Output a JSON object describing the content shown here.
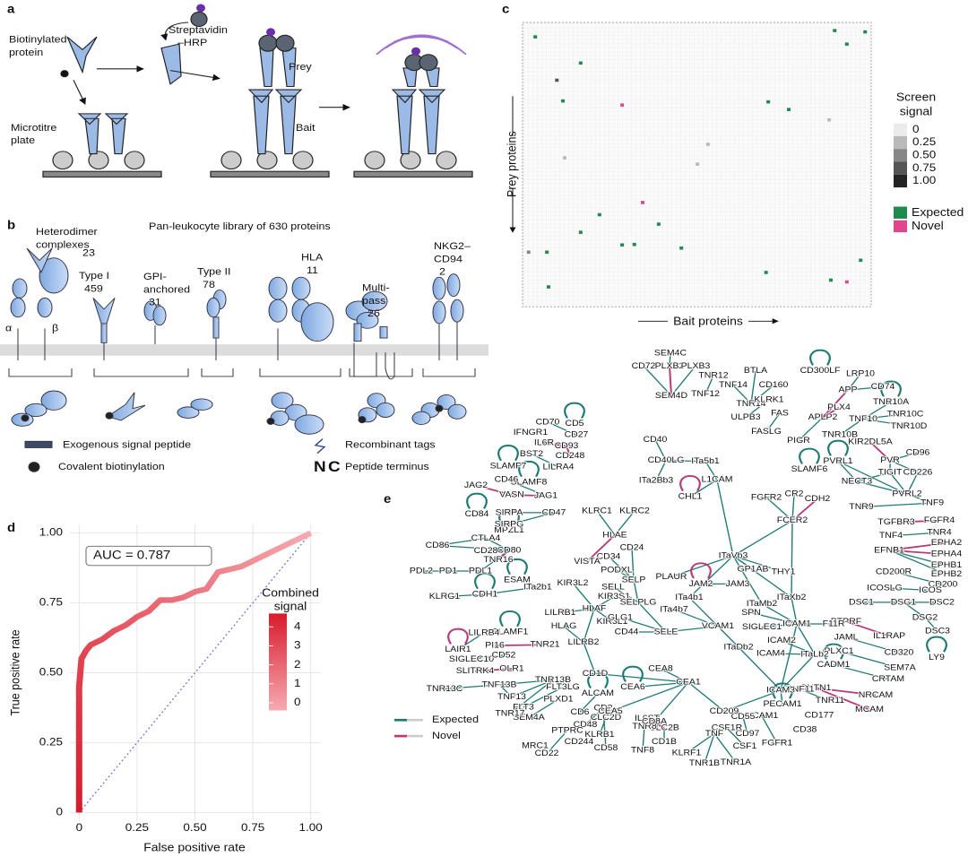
{
  "panel_labels": [
    "a",
    "b",
    "c",
    "d",
    "e"
  ],
  "panel_a": {
    "labels": [
      [
        "Biotinylated",
        "protein"
      ],
      [
        "Streptavidin",
        "–HRP"
      ],
      [
        "Prey"
      ],
      [
        "Microtitre",
        "plate"
      ],
      [
        "Bait"
      ]
    ]
  },
  "panel_b": {
    "title": "Pan-leukocyte library of 630 proteins",
    "classes": [
      {
        "name": [
          "Heterodimer",
          "complexes"
        ],
        "count": 23
      },
      {
        "name": [
          "Type I"
        ],
        "count": 459
      },
      {
        "name": [
          "GPI-",
          "anchored"
        ],
        "count": 31
      },
      {
        "name": [
          "Type II"
        ],
        "count": 78
      },
      {
        "name": [
          "HLA"
        ],
        "count": 11
      },
      {
        "name": [
          "Multi-",
          "pass"
        ],
        "count": 26
      },
      {
        "name": [
          "NKG2–",
          "CD94"
        ],
        "count": 2
      }
    ],
    "chains": [
      "α",
      "β"
    ],
    "legend": [
      "Exogenous signal peptide",
      "Recombinant tags",
      "Covalent biotinylation",
      "Peptide terminus"
    ],
    "termini": [
      {
        "label": "N",
        "color": "#7040c0"
      },
      {
        "label": "C",
        "color": "#4f7cc8"
      }
    ]
  },
  "chart_data": [
    {
      "type": "heatmap",
      "xlabel": "Bait proteins",
      "ylabel": "Prey proteins",
      "xlim": [
        0,
        630
      ],
      "ylim": [
        0,
        630
      ],
      "legend_title": [
        "Screen",
        "signal"
      ],
      "legend_ticks": [
        0,
        0.25,
        {
          "value": 0.5,
          "label": "0.50"
        },
        0.75,
        {
          "value": 1,
          "label": "1.00"
        }
      ],
      "classes": [
        {
          "name": "Expected",
          "color": "#1e8a4c"
        },
        {
          "name": "Novel",
          "color": "#e0468c"
        }
      ],
      "points": [
        {
          "bait": 23,
          "prey": 32,
          "class": "Expected"
        },
        {
          "bait": 105,
          "prey": 90,
          "class": "Expected"
        },
        {
          "bait": 62,
          "prey": 128,
          "signal": 0.75
        },
        {
          "bait": 73,
          "prey": 174,
          "class": "Expected"
        },
        {
          "bait": 180,
          "prey": 183,
          "class": "Novel"
        },
        {
          "bait": 564,
          "prey": 18,
          "class": "Expected"
        },
        {
          "bait": 619,
          "prey": 21,
          "class": "Expected"
        },
        {
          "bait": 586,
          "prey": 48,
          "class": "Expected"
        },
        {
          "bait": 444,
          "prey": 176,
          "class": "Expected"
        },
        {
          "bait": 481,
          "prey": 193,
          "class": "Expected"
        },
        {
          "bait": 139,
          "prey": 426,
          "class": "Expected"
        },
        {
          "bait": 217,
          "prey": 399,
          "class": "Novel"
        },
        {
          "bait": 246,
          "prey": 447,
          "class": "Expected"
        },
        {
          "bait": 316,
          "prey": 314,
          "signal": 0.25
        },
        {
          "bait": 202,
          "prey": 492,
          "class": "Expected"
        },
        {
          "bait": 287,
          "prey": 500,
          "class": "Expected"
        },
        {
          "bait": 105,
          "prey": 465,
          "class": "Expected"
        },
        {
          "bait": 180,
          "prey": 493,
          "class": "Expected"
        },
        {
          "bait": 440,
          "prey": 554,
          "class": "Expected"
        },
        {
          "bait": 47,
          "prey": 586,
          "class": "Expected"
        },
        {
          "bait": 557,
          "prey": 571,
          "class": "Expected"
        },
        {
          "bait": 586,
          "prey": 575,
          "class": "Novel"
        },
        {
          "bait": 611,
          "prey": 527,
          "class": "Expected"
        },
        {
          "bait": 44,
          "prey": 509,
          "class": "Expected"
        },
        {
          "bait": 11,
          "prey": 509,
          "signal": 0.5
        },
        {
          "bait": 335,
          "prey": 270,
          "signal": 0.25
        },
        {
          "bait": 76,
          "prey": 300,
          "signal": 0.25
        },
        {
          "bait": 554,
          "prey": 216,
          "signal": 0.25
        }
      ]
    },
    {
      "type": "line",
      "annotation": "AUC = 0.787",
      "xlabel": "False positive rate",
      "ylabel": "True positive rate",
      "xlim": [
        -0.04,
        1.04
      ],
      "ylim": [
        -0.03,
        1.03
      ],
      "xticks": [
        0,
        0.25,
        {
          "value": 0.5,
          "label": "0.50"
        },
        0.75,
        {
          "value": 1,
          "label": "1.00"
        }
      ],
      "yticks": [
        0,
        0.25,
        {
          "value": 0.5,
          "label": "0.50"
        },
        0.75,
        {
          "value": 1,
          "label": "1.00"
        }
      ],
      "x": [
        0,
        0,
        0.005,
        0.01,
        0.03,
        0.05,
        0.1,
        0.15,
        0.2,
        0.25,
        0.3,
        0.35,
        0.4,
        0.45,
        0.5,
        0.55,
        0.6,
        0.65,
        0.7,
        0.75,
        0.8,
        0.85,
        0.9,
        0.95,
        1
      ],
      "values": [
        0,
        0.45,
        0.5,
        0.55,
        0.58,
        0.6,
        0.62,
        0.65,
        0.67,
        0.7,
        0.72,
        0.76,
        0.76,
        0.77,
        0.79,
        0.8,
        0.86,
        0.87,
        0.88,
        0.9,
        0.92,
        0.94,
        0.96,
        0.98,
        1
      ],
      "grid": true,
      "color_range": [
        "#d81b2c",
        "#f6aab0"
      ],
      "legend_title": [
        "Combined",
        "signal"
      ],
      "legend_ticks": [
        0,
        1,
        2,
        3,
        4
      ],
      "colorbar_lim": [
        -0.4,
        4.7
      ]
    }
  ],
  "network": {
    "legend": [
      {
        "name": "Expected",
        "color": "#1f7a74"
      },
      {
        "name": "Novel",
        "color": "#b83a7a"
      }
    ],
    "nodes": [
      "SEM4C",
      "CD72",
      "PLXB2",
      "PLXB3",
      "SEM4D",
      "TNR12",
      "TNF12",
      "BTLA",
      "TNF14",
      "CD160",
      "TNR14",
      "CD300LF",
      "LRP10",
      "APP",
      "CD74",
      "KLRK1",
      "FAS",
      "ULPB3",
      "FASLG",
      "PLX4",
      "APLP2",
      "TNR10A",
      "TNF10",
      "TNR10C",
      "TNR10D",
      "PIGR",
      "TNR10B",
      "CD70",
      "CD5",
      "CD27",
      "IFNGR1",
      "CD93",
      "IL6R",
      "BST2",
      "CD248",
      "LILRA4",
      "CD40",
      "CD40LG",
      "ITa5b1",
      "ITa2Bb3",
      "KIR2DL5A",
      "CD96",
      "SLAMF7",
      "SLAMF8",
      "CD46",
      "JAG2",
      "VASN",
      "JAG1",
      "L1CAM",
      "SLAMF6",
      "PVRL1",
      "PVR",
      "CD226",
      "NECT3",
      "TIGIT",
      "PVRL2",
      "TNF9",
      "CHL1",
      "FGFR2",
      "CR2",
      "CDH2",
      "FCER2",
      "TNR9",
      "TGFBR3",
      "FGFR4",
      "TNR4",
      "TNF4",
      "EPHA2",
      "EFNB1",
      "EPHA4",
      "EPHB1",
      "EPHB2",
      "CD200R",
      "CD200",
      "ICOSLG",
      "ICOS",
      "DSC1",
      "DSG1",
      "DSC2",
      "DSG2",
      "DSC3",
      "LY9",
      "PTPRF",
      "JAML",
      "IL1RAP",
      "CD320",
      "SEM7A",
      "PLXC1",
      "CADM1",
      "CRTAM",
      "CNTN1",
      "NRCAM",
      "MCAM",
      "TNF11",
      "TNR11",
      "CD177",
      "PECAM1",
      "CD38",
      "NCAM1",
      "FGFR1",
      "CD55",
      "CD97",
      "CSF1R",
      "CSF1",
      "TNF",
      "KLRF1",
      "TNR1B",
      "TNR1A",
      "IL6ST",
      "CLC2B",
      "CD1B",
      "TNR8",
      "TNF8",
      "CLC2D",
      "KLRB1",
      "CD2",
      "CD48",
      "CD6",
      "ALCAM",
      "CD244",
      "CD58",
      "PTPRC",
      "MRC1",
      "CD22",
      "SEM4A",
      "PLXD1",
      "FLT3",
      "FLT3LG",
      "TNR13B",
      "TNF13B",
      "TNF13",
      "TNR17",
      "TNR13C",
      "OLR1",
      "SLITRK4",
      "SIGLEC10",
      "CD52",
      "TNR21",
      "PI16",
      "SLAMF1",
      "LILRB4",
      "LAIR1",
      "CDH1",
      "KLRG1",
      "ITa2b1",
      "ESAM",
      "PDL2",
      "PD1",
      "PDL1",
      "TNR16",
      "CD80",
      "CD28",
      "CD86",
      "CTLA4",
      "MPZL1",
      "SIRPA",
      "SIRPG",
      "CD47",
      "CD84",
      "KLRC1",
      "KLRC2",
      "HLAE",
      "CD24",
      "CD34",
      "VISTA",
      "PODXL",
      "SELP",
      "KIR3L2",
      "KIR3S1",
      "SELL",
      "HLAF",
      "LILRB1",
      "KIR3L1",
      "SELPLG",
      "GLG1",
      "HLAG",
      "LILRB2",
      "CD44",
      "SELE",
      "CEA8",
      "CEA6",
      "CEA1",
      "CD1D",
      "CEA5",
      "CD8A",
      "CD209",
      "ICAM3",
      "ITaDb2",
      "VCAM1",
      "ITa4b7",
      "ITa4b1",
      "PLAUR",
      "JAM2",
      "JAM3",
      "GP1AB",
      "THY1",
      "ITaVb3",
      "ITaMb2",
      "ITaXb2",
      "SPN",
      "SIGLEC1",
      "ICAM1",
      "F11R",
      "ICAM2",
      "ICAM4",
      "ITaLb2"
    ]
  }
}
